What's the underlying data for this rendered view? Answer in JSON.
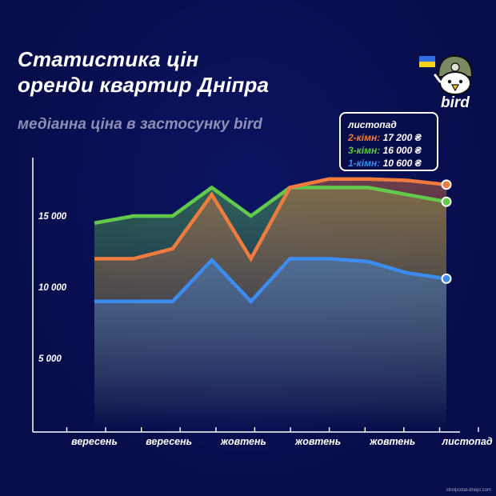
{
  "title_lines": [
    "Статистика цін",
    "оренди квартир Дніпра"
  ],
  "subtitle": "медіанна ціна в застосунку bird",
  "logo_text": "bird",
  "legend": {
    "title": "листопад",
    "rows": [
      {
        "label": "2-кімн:",
        "value": "17 200 ₴",
        "color": "#f07b3f"
      },
      {
        "label": "3-кімн:",
        "value": "16 000 ₴",
        "color": "#62c94b"
      },
      {
        "label": "1-кімн:",
        "value": "10 600 ₴",
        "color": "#3d8cf0"
      }
    ]
  },
  "source": "strelportal-dnepr.com",
  "chart_data": {
    "type": "area",
    "y_ticks": [
      "15 000",
      "10 000",
      "5 000"
    ],
    "y_tick_values": [
      15000,
      10000,
      5000
    ],
    "ylim": [
      0,
      19000
    ],
    "x_tick_labels": [
      "вересень",
      "вересень",
      "жовтень",
      "жовтень",
      "жовтень",
      "листопад"
    ],
    "x": [
      0,
      1,
      2,
      3,
      4,
      5,
      6,
      7,
      8,
      9
    ],
    "series": [
      {
        "name": "3-кімн",
        "color": "#62c94b",
        "values": [
          14500,
          15000,
          15000,
          17000,
          15000,
          17000,
          17000,
          17000,
          16500,
          16000
        ]
      },
      {
        "name": "2-кімн",
        "color": "#f07b3f",
        "values": [
          12000,
          12000,
          12700,
          16500,
          12000,
          17000,
          17600,
          17600,
          17500,
          17200
        ]
      },
      {
        "name": "1-кімн",
        "color": "#3d8cf0",
        "values": [
          9000,
          9000,
          9000,
          11900,
          9000,
          12000,
          12000,
          11800,
          11000,
          10600
        ]
      }
    ]
  }
}
